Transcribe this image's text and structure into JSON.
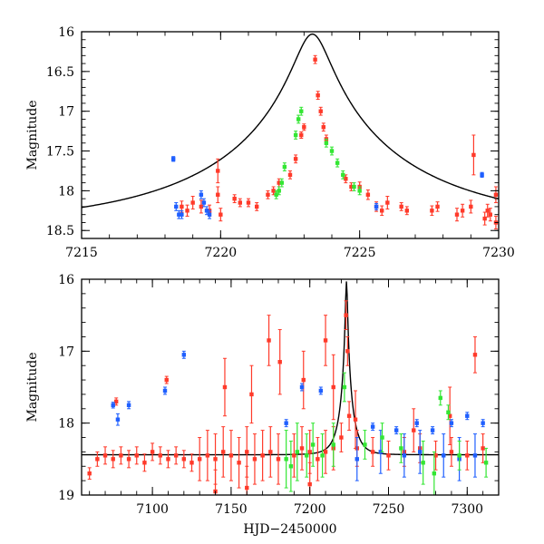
{
  "chart_data": [
    {
      "type": "scatter",
      "panel": "top",
      "ylabel": "Magnitude",
      "xlabel": "",
      "xlim": [
        7215,
        7230
      ],
      "ylim": [
        18.6,
        16.0
      ],
      "y_inverted": true,
      "x_ticks": [
        7215,
        7220,
        7225,
        7230
      ],
      "x_tick_labels": [
        "7215",
        "7220",
        "7225",
        "7230"
      ],
      "y_ticks": [
        16,
        16.5,
        17,
        17.5,
        18,
        18.5
      ],
      "y_tick_labels": [
        "16",
        "16.5",
        "17",
        "17.5",
        "18",
        "18.5"
      ],
      "model": {
        "name": "microlensing model",
        "color": "#000000",
        "t0": 7223.3,
        "u0": 0.08,
        "tE": 7.5,
        "base": 18.44,
        "peak": 16.03
      },
      "series": [
        {
          "name": "red",
          "color": "#ff3a2a",
          "points": [
            [
              7218.6,
              18.2,
              0.07
            ],
            [
              7218.8,
              18.25,
              0.07
            ],
            [
              7219.0,
              18.15,
              0.08
            ],
            [
              7219.3,
              18.2,
              0.08
            ],
            [
              7219.6,
              18.25,
              0.07
            ],
            [
              7219.9,
              18.05,
              0.1
            ],
            [
              7219.9,
              17.75,
              0.15
            ],
            [
              7220.0,
              18.3,
              0.08
            ],
            [
              7220.5,
              18.1,
              0.05
            ],
            [
              7220.7,
              18.15,
              0.05
            ],
            [
              7221.0,
              18.15,
              0.05
            ],
            [
              7221.3,
              18.2,
              0.05
            ],
            [
              7221.7,
              18.05,
              0.05
            ],
            [
              7221.9,
              18.0,
              0.05
            ],
            [
              7222.1,
              17.9,
              0.05
            ],
            [
              7222.5,
              17.8,
              0.05
            ],
            [
              7222.7,
              17.6,
              0.05
            ],
            [
              7222.9,
              17.3,
              0.04
            ],
            [
              7223.0,
              17.2,
              0.04
            ],
            [
              7223.4,
              16.35,
              0.05
            ],
            [
              7223.5,
              16.8,
              0.05
            ],
            [
              7223.6,
              17.0,
              0.05
            ],
            [
              7223.7,
              17.2,
              0.05
            ],
            [
              7223.8,
              17.35,
              0.05
            ],
            [
              7224.5,
              17.85,
              0.05
            ],
            [
              7224.7,
              17.95,
              0.05
            ],
            [
              7225.0,
              17.95,
              0.06
            ],
            [
              7225.3,
              18.05,
              0.06
            ],
            [
              7225.6,
              18.2,
              0.06
            ],
            [
              7225.8,
              18.25,
              0.06
            ],
            [
              7226.0,
              18.15,
              0.08
            ],
            [
              7226.5,
              18.2,
              0.05
            ],
            [
              7226.7,
              18.25,
              0.05
            ],
            [
              7227.6,
              18.25,
              0.06
            ],
            [
              7227.8,
              18.2,
              0.06
            ],
            [
              7228.5,
              18.3,
              0.08
            ],
            [
              7228.7,
              18.25,
              0.08
            ],
            [
              7229.0,
              18.2,
              0.08
            ],
            [
              7229.1,
              17.55,
              0.25
            ],
            [
              7229.5,
              18.35,
              0.08
            ],
            [
              7229.6,
              18.25,
              0.08
            ],
            [
              7229.7,
              18.3,
              0.08
            ],
            [
              7229.9,
              18.05,
              0.1
            ],
            [
              7229.9,
              18.4,
              0.08
            ]
          ]
        },
        {
          "name": "blue",
          "color": "#1f5fff",
          "points": [
            [
              7218.3,
              17.6,
              0.03
            ],
            [
              7218.4,
              18.2,
              0.05
            ],
            [
              7218.5,
              18.3,
              0.05
            ],
            [
              7218.6,
              18.3,
              0.05
            ],
            [
              7219.3,
              18.05,
              0.05
            ],
            [
              7219.4,
              18.15,
              0.05
            ],
            [
              7219.5,
              18.25,
              0.05
            ],
            [
              7219.6,
              18.3,
              0.05
            ],
            [
              7225.6,
              18.2,
              0.04
            ],
            [
              7229.4,
              17.8,
              0.03
            ]
          ]
        },
        {
          "name": "green",
          "color": "#33e633",
          "points": [
            [
              7222.0,
              18.05,
              0.05
            ],
            [
              7222.1,
              18.0,
              0.05
            ],
            [
              7222.2,
              17.9,
              0.05
            ],
            [
              7222.3,
              17.7,
              0.05
            ],
            [
              7222.7,
              17.3,
              0.05
            ],
            [
              7222.8,
              17.1,
              0.05
            ],
            [
              7222.9,
              17.0,
              0.05
            ],
            [
              7223.8,
              17.4,
              0.05
            ],
            [
              7224.0,
              17.5,
              0.05
            ],
            [
              7224.2,
              17.65,
              0.05
            ],
            [
              7224.4,
              17.8,
              0.05
            ],
            [
              7224.8,
              17.95,
              0.05
            ],
            [
              7225.0,
              18.0,
              0.05
            ]
          ]
        }
      ]
    },
    {
      "type": "scatter",
      "panel": "bottom",
      "ylabel": "Magnitude",
      "xlabel": "HJD−2450000",
      "xlim": [
        7055,
        7320
      ],
      "ylim": [
        19.0,
        16.0
      ],
      "y_inverted": true,
      "x_ticks": [
        7100,
        7150,
        7200,
        7250,
        7300
      ],
      "x_tick_labels": [
        "7100",
        "7150",
        "7200",
        "7250",
        "7300"
      ],
      "y_ticks": [
        16,
        17,
        18,
        19
      ],
      "y_tick_labels": [
        "16",
        "17",
        "18",
        "19"
      ],
      "model": {
        "name": "microlensing model",
        "color": "#000000",
        "t0": 7223.3,
        "u0": 0.08,
        "tE": 7.5,
        "base": 18.44,
        "peak": 16.03
      },
      "series": [
        {
          "name": "red",
          "color": "#ff3a2a",
          "points": [
            [
              7060,
              18.7,
              0.08
            ],
            [
              7065,
              18.5,
              0.1
            ],
            [
              7070,
              18.45,
              0.12
            ],
            [
              7075,
              18.5,
              0.12
            ],
            [
              7080,
              18.45,
              0.12
            ],
            [
              7085,
              18.5,
              0.12
            ],
            [
              7090,
              18.45,
              0.12
            ],
            [
              7095,
              18.55,
              0.12
            ],
            [
              7100,
              18.4,
              0.12
            ],
            [
              7105,
              18.45,
              0.12
            ],
            [
              7110,
              18.5,
              0.12
            ],
            [
              7115,
              18.45,
              0.12
            ],
            [
              7120,
              18.5,
              0.12
            ],
            [
              7125,
              18.55,
              0.12
            ],
            [
              7130,
              18.5,
              0.3
            ],
            [
              7135,
              18.45,
              0.35
            ],
            [
              7140,
              18.5,
              0.35
            ],
            [
              7145,
              18.4,
              0.35
            ],
            [
              7150,
              18.45,
              0.35
            ],
            [
              7155,
              18.55,
              0.35
            ],
            [
              7160,
              18.4,
              0.35
            ],
            [
              7165,
              18.5,
              0.35
            ],
            [
              7170,
              18.45,
              0.35
            ],
            [
              7175,
              18.4,
              0.35
            ],
            [
              7180,
              18.5,
              0.35
            ],
            [
              7190,
              18.45,
              0.3
            ],
            [
              7195,
              18.35,
              0.3
            ],
            [
              7200,
              18.4,
              0.3
            ],
            [
              7205,
              18.5,
              0.3
            ],
            [
              7210,
              18.4,
              0.3
            ],
            [
              7215,
              18.35,
              0.3
            ],
            [
              7220,
              18.2,
              0.2
            ],
            [
              7223,
              16.5,
              0.2
            ],
            [
              7224,
              17.0,
              0.2
            ],
            [
              7225,
              17.9,
              0.2
            ],
            [
              7230,
              18.35,
              0.25
            ],
            [
              7240,
              18.4,
              0.2
            ],
            [
              7250,
              18.45,
              0.2
            ],
            [
              7260,
              18.4,
              0.2
            ],
            [
              7270,
              18.35,
              0.2
            ],
            [
              7280,
              18.45,
              0.2
            ],
            [
              7290,
              18.4,
              0.2
            ],
            [
              7300,
              18.45,
              0.2
            ],
            [
              7305,
              17.05,
              0.25
            ],
            [
              7310,
              18.35,
              0.2
            ],
            [
              7077,
              17.7,
              0.05
            ],
            [
              7109,
              17.4,
              0.05
            ],
            [
              7146,
              17.5,
              0.4
            ],
            [
              7163,
              17.6,
              0.4
            ],
            [
              7174,
              16.85,
              0.35
            ],
            [
              7181,
              17.15,
              0.45
            ],
            [
              7196,
              17.4,
              0.4
            ],
            [
              7210,
              16.85,
              0.35
            ],
            [
              7215,
              17.5,
              0.45
            ],
            [
              7229,
              17.95,
              0.4
            ],
            [
              7266,
              18.1,
              0.3
            ],
            [
              7289,
              17.9,
              0.4
            ],
            [
              7140,
              18.95,
              0.3
            ],
            [
              7160,
              18.9,
              0.3
            ],
            [
              7200,
              18.85,
              0.3
            ]
          ]
        },
        {
          "name": "blue",
          "color": "#1f5fff",
          "points": [
            [
              7075,
              17.75,
              0.04
            ],
            [
              7078,
              17.95,
              0.08
            ],
            [
              7085,
              17.75,
              0.05
            ],
            [
              7108,
              17.55,
              0.05
            ],
            [
              7120,
              17.05,
              0.05
            ],
            [
              7195,
              17.5,
              0.05
            ],
            [
              7207,
              17.55,
              0.05
            ],
            [
              7185,
              18.0,
              0.05
            ],
            [
              7240,
              18.05,
              0.05
            ],
            [
              7255,
              18.1,
              0.05
            ],
            [
              7268,
              18.0,
              0.05
            ],
            [
              7278,
              18.1,
              0.05
            ],
            [
              7290,
              18.0,
              0.05
            ],
            [
              7300,
              17.9,
              0.05
            ],
            [
              7310,
              18.0,
              0.05
            ],
            [
              7230,
              18.5,
              0.3
            ],
            [
              7245,
              18.4,
              0.3
            ],
            [
              7260,
              18.45,
              0.3
            ],
            [
              7270,
              18.4,
              0.3
            ],
            [
              7285,
              18.45,
              0.3
            ],
            [
              7295,
              18.5,
              0.3
            ],
            [
              7305,
              18.45,
              0.3
            ]
          ]
        },
        {
          "name": "green",
          "color": "#33e633",
          "points": [
            [
              7185,
              18.5,
              0.4
            ],
            [
              7188,
              18.6,
              0.35
            ],
            [
              7192,
              18.4,
              0.4
            ],
            [
              7198,
              18.45,
              0.3
            ],
            [
              7202,
              18.3,
              0.3
            ],
            [
              7208,
              18.45,
              0.3
            ],
            [
              7215,
              18.3,
              0.3
            ],
            [
              7222,
              17.5,
              0.2
            ],
            [
              7235,
              18.3,
              0.2
            ],
            [
              7246,
              18.2,
              0.2
            ],
            [
              7258,
              18.35,
              0.2
            ],
            [
              7272,
              18.55,
              0.3
            ],
            [
              7279,
              18.7,
              0.3
            ],
            [
              7283,
              17.65,
              0.1
            ],
            [
              7288,
              17.85,
              0.1
            ],
            [
              7295,
              18.45,
              0.2
            ],
            [
              7312,
              18.55,
              0.2
            ]
          ]
        }
      ]
    }
  ]
}
